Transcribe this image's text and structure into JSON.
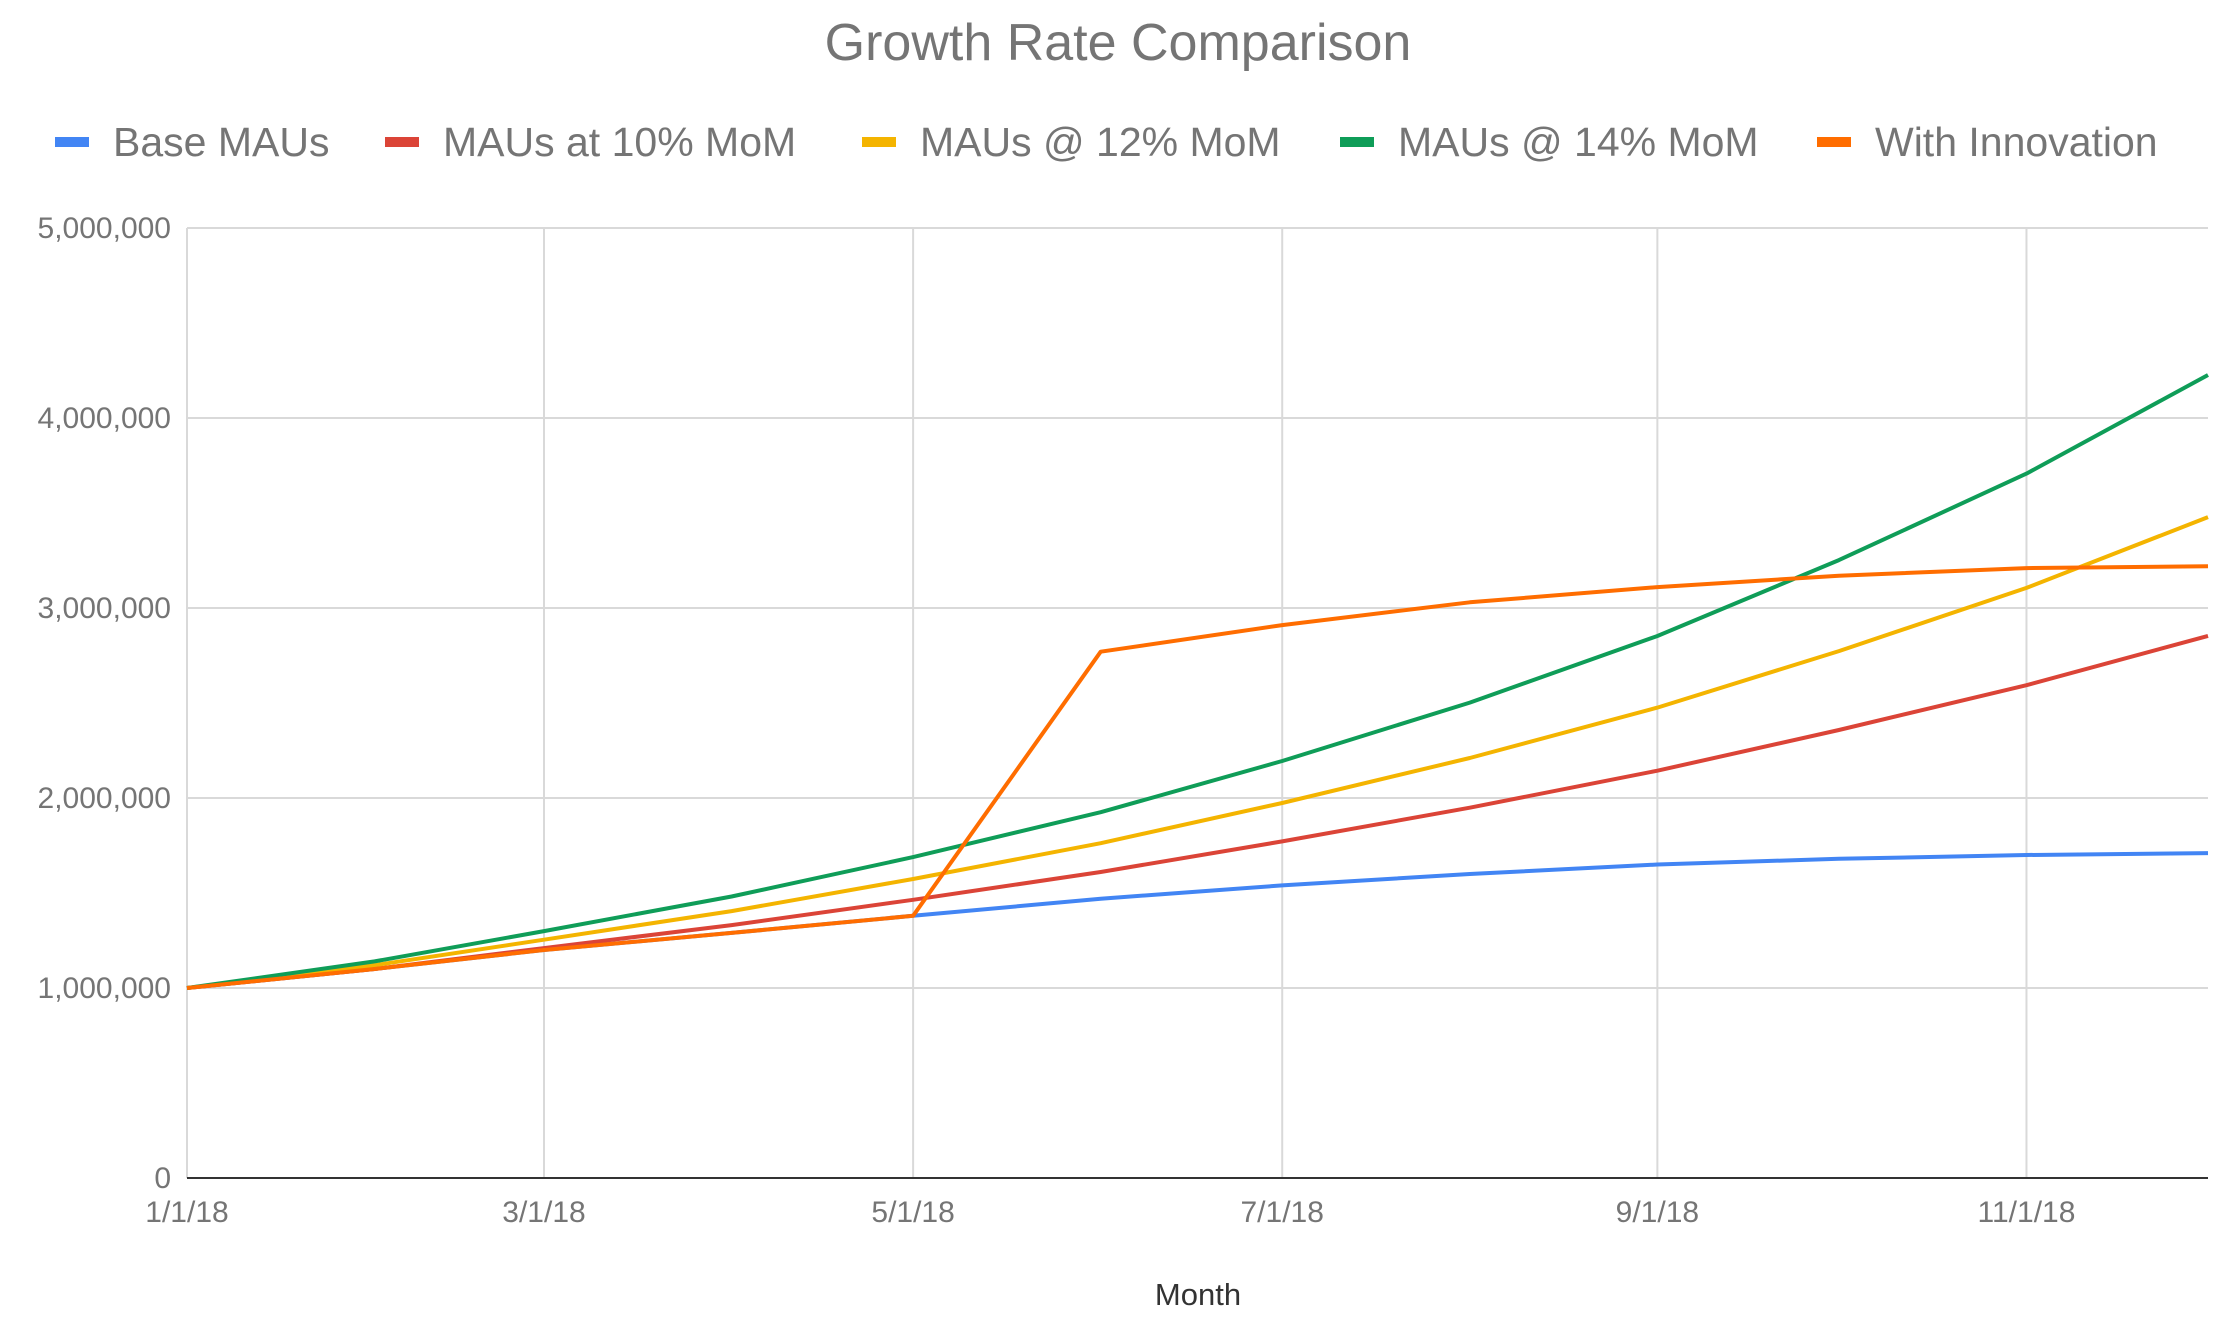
{
  "chart_data": {
    "type": "line",
    "title": "Growth Rate Comparison",
    "xlabel": "Month",
    "ylabel": "",
    "x": [
      "2018-01-01",
      "2018-02-01",
      "2018-03-01",
      "2018-04-01",
      "2018-05-01",
      "2018-06-01",
      "2018-07-01",
      "2018-08-01",
      "2018-09-01",
      "2018-10-01",
      "2018-11-01",
      "2018-12-01"
    ],
    "x_tick_labels": [
      "1/1/18",
      "3/1/18",
      "5/1/18",
      "7/1/18",
      "9/1/18",
      "11/1/18"
    ],
    "x_ticks": [
      "2018-01-01",
      "2018-03-01",
      "2018-05-01",
      "2018-07-01",
      "2018-09-01",
      "2018-11-01"
    ],
    "ylim": [
      0,
      5000000
    ],
    "y_ticks": [
      0,
      1000000,
      2000000,
      3000000,
      4000000,
      5000000
    ],
    "y_tick_labels": [
      "0",
      "1,000,000",
      "2,000,000",
      "3,000,000",
      "4,000,000",
      "5,000,000"
    ],
    "grid": true,
    "legend_position": "top",
    "series": [
      {
        "name": "Base MAUs",
        "color": "#4285f4",
        "values": [
          1000000,
          1100000,
          1200000,
          1290000,
          1380000,
          1470000,
          1540000,
          1600000,
          1650000,
          1680000,
          1700000,
          1710000
        ]
      },
      {
        "name": "MAUs at 10% MoM",
        "color": "#db4437",
        "values": [
          1000000,
          1100000,
          1210000,
          1331000,
          1464100,
          1610510,
          1771561,
          1948717,
          2143589,
          2357948,
          2593742,
          2853117
        ]
      },
      {
        "name": "MAUs @ 12% MoM",
        "color": "#f4b400",
        "values": [
          1000000,
          1120000,
          1254400,
          1404928,
          1573519,
          1762342,
          1973823,
          2210681,
          2475963,
          2773079,
          3105848,
          3478550
        ]
      },
      {
        "name": "MAUs @ 14% MoM",
        "color": "#0f9d58",
        "values": [
          1000000,
          1140000,
          1299600,
          1481544,
          1688960,
          1925415,
          2194973,
          2502269,
          2852586,
          3251949,
          3707221,
          4226232
        ]
      },
      {
        "name": "With Innovation",
        "color": "#ff6d00",
        "values": [
          1000000,
          1100000,
          1200000,
          1290000,
          1380000,
          2770000,
          2910000,
          3030000,
          3110000,
          3170000,
          3210000,
          3220000
        ]
      }
    ]
  }
}
